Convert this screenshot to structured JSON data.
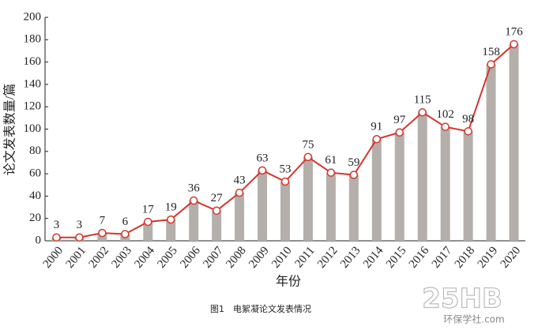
{
  "chart_data": {
    "type": "combo",
    "y_label": "论文发表数量/篇",
    "x_label": "年份",
    "caption": "图1　电絮凝论文发表情况",
    "watermark": "25HB",
    "watermark_subtitle": "环保学社.com",
    "categories": [
      "2000",
      "2001",
      "2002",
      "2003",
      "2004",
      "2005",
      "2006",
      "2007",
      "2008",
      "2009",
      "2010",
      "2011",
      "2012",
      "2013",
      "2014",
      "2015",
      "2016",
      "2017",
      "2018",
      "2019",
      "2020"
    ],
    "values": [
      3,
      3,
      7,
      6,
      17,
      19,
      36,
      27,
      43,
      63,
      53,
      75,
      61,
      59,
      91,
      97,
      115,
      102,
      98,
      158,
      176
    ],
    "bar_color": "#b4afaa",
    "line_color": "#d6352c",
    "ylim": [
      0,
      200
    ],
    "yticks": [
      0,
      20,
      40,
      60,
      80,
      100,
      120,
      140,
      160,
      180,
      200
    ],
    "grid": false
  }
}
